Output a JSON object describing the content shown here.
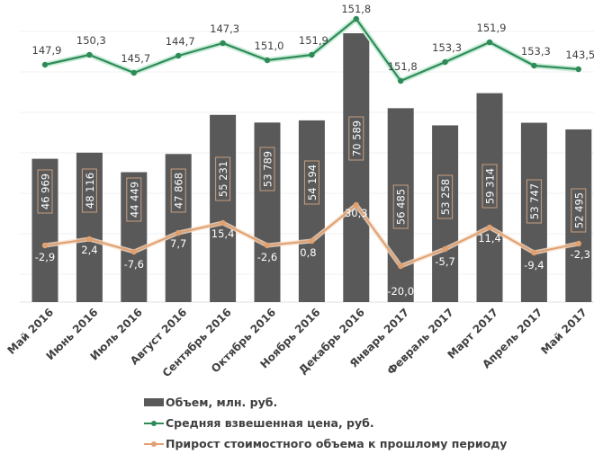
{
  "chart_data": {
    "type": "bar+line",
    "title": "",
    "categories": [
      "Май 2016",
      "Июнь 2016",
      "Июль 2016",
      "Август 2016",
      "Сентябрь 2016",
      "Октябрь 2016",
      "Ноябрь 2016",
      "Декабрь 2016",
      "Январь 2017",
      "Февраль 2017",
      "Март 2017",
      "Апрель 2017",
      "Май 2017"
    ],
    "series": [
      {
        "name": "Объем, млн. руб.",
        "type": "bar",
        "color": "#595959",
        "values": [
          46969,
          48116,
          44449,
          47868,
          55231,
          53789,
          54194,
          70589,
          56485,
          53258,
          59314,
          53747,
          52495
        ],
        "labels": [
          "46 969",
          "48 116",
          "44 449",
          "47 868",
          "55 231",
          "53 789",
          "54 194",
          "70 589",
          "56 485",
          "53 258",
          "59 314",
          "53 747",
          "52 495"
        ]
      },
      {
        "name": "Средняя взвешенная цена, руб.",
        "type": "line",
        "color": "#2e8b57",
        "values": [
          147.9,
          150.3,
          145.7,
          144.7,
          147.3,
          151.0,
          151.9,
          151.8,
          151.8,
          153.3,
          151.9,
          153.3,
          143.5
        ],
        "labels": [
          "147,9",
          "150,3",
          "145,7",
          "144,7",
          "147,3",
          "151,0",
          "151,9",
          "151,8",
          "151,8",
          "153,3",
          "151,9",
          "153,3",
          "143,5"
        ]
      },
      {
        "name": "Прирост стоимостного объема к прошлому периоду",
        "type": "line",
        "color": "#e0a070",
        "values": [
          -2.9,
          2.4,
          -7.6,
          7.7,
          15.4,
          -2.6,
          0.8,
          30.3,
          -20.0,
          -5.7,
          11.4,
          -9.4,
          -2.3
        ],
        "labels": [
          "-2,9",
          "2,4",
          "-7,6",
          "7,7",
          "15,4",
          "-2,6",
          "0,8",
          "30,3",
          "-20,0",
          "-5,7",
          "11,4",
          "-9,4",
          "-2,3"
        ]
      }
    ],
    "xlabel": "",
    "ylabel": "",
    "grid": true,
    "legend_position": "bottom"
  },
  "legend": {
    "items": [
      {
        "label": "Объем, млн. руб.",
        "color": "#595959"
      },
      {
        "label": "Средняя взвешенная цена, руб.",
        "color": "#2e8b57"
      },
      {
        "label": "Прирост стоимостного объема к прошлому периоду",
        "color": "#e0a070"
      }
    ]
  }
}
